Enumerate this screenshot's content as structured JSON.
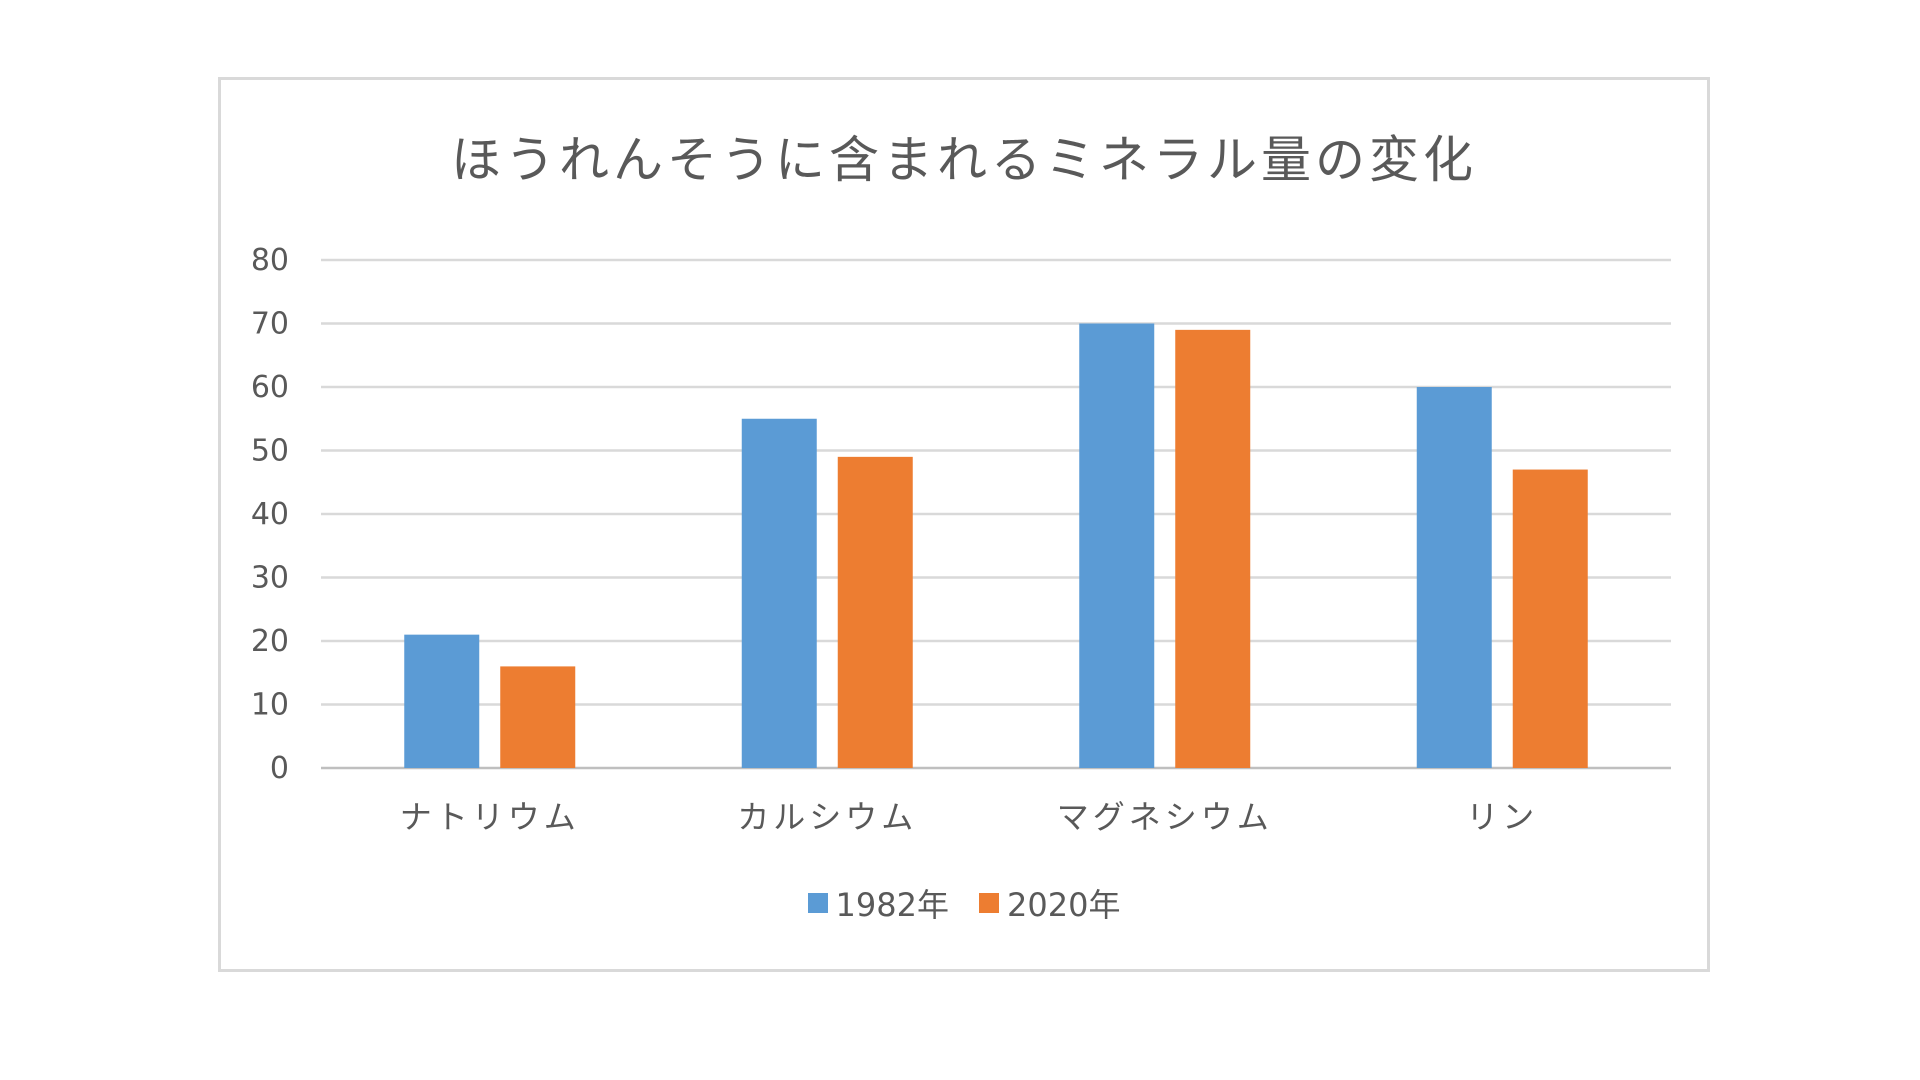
{
  "chart_data": {
    "type": "bar",
    "title": "ほうれんそうに含まれるミネラル量の変化",
    "categories": [
      "ナトリウム",
      "カルシウム",
      "マグネシウム",
      "リン"
    ],
    "series": [
      {
        "name": "1982年",
        "values": [
          21,
          55,
          70,
          60
        ],
        "color": "#5b9bd5"
      },
      {
        "name": "2020年",
        "values": [
          16,
          49,
          69,
          47
        ],
        "color": "#ed7d31"
      }
    ],
    "ylim": [
      0,
      80
    ],
    "yticks": [
      0,
      10,
      20,
      30,
      40,
      50,
      60,
      70,
      80
    ],
    "grid": true,
    "legend_position": "bottom",
    "xlabel": "",
    "ylabel": ""
  }
}
